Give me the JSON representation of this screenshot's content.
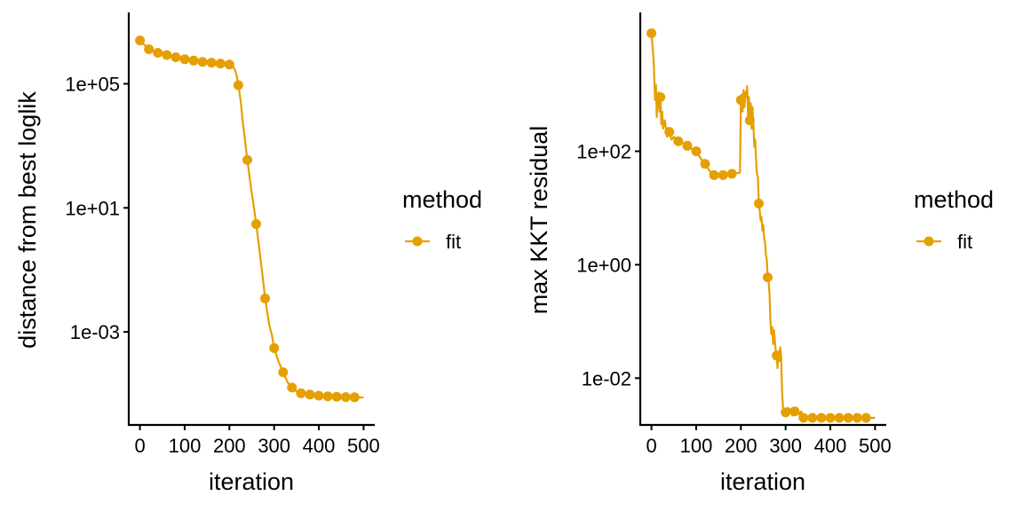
{
  "chart_data": [
    {
      "type": "line",
      "xlabel": "iteration",
      "ylabel": "distance from best loglik",
      "y_scale": "log10",
      "xlim": [
        -25,
        525
      ],
      "ylim": [
        1e-06,
        20000000
      ],
      "x_ticks": [
        0,
        100,
        200,
        300,
        400,
        500
      ],
      "x_tick_labels": [
        "0",
        "100",
        "200",
        "300",
        "400",
        "500"
      ],
      "y_ticks": [
        0.001,
        10,
        100000
      ],
      "y_tick_labels": [
        "1e-03",
        "1e+01",
        "1e+05"
      ],
      "legend": {
        "title": "method",
        "placement": "right"
      },
      "series": [
        {
          "name": "fit",
          "color": "#E69F00",
          "line": [
            [
              0,
              2500000
            ],
            [
              10,
              1800000
            ],
            [
              20,
              1300000
            ],
            [
              30,
              1150000
            ],
            [
              40,
              1000000
            ],
            [
              60,
              850000
            ],
            [
              80,
              720000
            ],
            [
              100,
              620000
            ],
            [
              120,
              560000
            ],
            [
              140,
              510000
            ],
            [
              160,
              480000
            ],
            [
              180,
              450000
            ],
            [
              190,
              440000
            ],
            [
              200,
              420000
            ],
            [
              205,
              400000
            ],
            [
              210,
              330000
            ],
            [
              215,
              220000
            ],
            [
              220,
              90000
            ],
            [
              225,
              30000
            ],
            [
              230,
              6000
            ],
            [
              235,
              1500
            ],
            [
              240,
              350
            ],
            [
              245,
              100
            ],
            [
              250,
              30
            ],
            [
              255,
              10
            ],
            [
              260,
              3
            ],
            [
              265,
              0.8
            ],
            [
              270,
              0.2
            ],
            [
              275,
              0.05
            ],
            [
              280,
              0.012
            ],
            [
              285,
              0.004
            ],
            [
              290,
              0.0015
            ],
            [
              295,
              0.0008
            ],
            [
              300,
              0.0003
            ],
            [
              310,
              0.00011
            ],
            [
              320,
              5e-05
            ],
            [
              330,
              2.4e-05
            ],
            [
              340,
              1.6e-05
            ],
            [
              350,
              1.2e-05
            ],
            [
              360,
              1.05e-05
            ],
            [
              380,
              9.5e-06
            ],
            [
              400,
              8.8e-06
            ],
            [
              420,
              8.4e-06
            ],
            [
              440,
              8.1e-06
            ],
            [
              460,
              7.9e-06
            ],
            [
              480,
              7.8e-06
            ],
            [
              500,
              7.7e-06
            ]
          ],
          "points": [
            [
              0,
              2500000
            ],
            [
              20,
              1300000
            ],
            [
              40,
              1000000
            ],
            [
              60,
              850000
            ],
            [
              80,
              720000
            ],
            [
              100,
              620000
            ],
            [
              120,
              560000
            ],
            [
              140,
              510000
            ],
            [
              160,
              480000
            ],
            [
              180,
              450000
            ],
            [
              200,
              420000
            ],
            [
              220,
              90000
            ],
            [
              240,
              350
            ],
            [
              260,
              3
            ],
            [
              280,
              0.012
            ],
            [
              300,
              0.0003
            ],
            [
              320,
              5e-05
            ],
            [
              340,
              1.6e-05
            ],
            [
              360,
              1.05e-05
            ],
            [
              380,
              9.5e-06
            ],
            [
              400,
              8.8e-06
            ],
            [
              420,
              8.4e-06
            ],
            [
              440,
              8.1e-06
            ],
            [
              460,
              7.9e-06
            ],
            [
              480,
              7.8e-06
            ]
          ]
        }
      ]
    },
    {
      "type": "line",
      "xlabel": "iteration",
      "ylabel": "max KKT residual",
      "y_scale": "log10",
      "xlim": [
        -25,
        525
      ],
      "ylim": [
        0.0015,
        28000
      ],
      "x_ticks": [
        0,
        100,
        200,
        300,
        400,
        500
      ],
      "x_tick_labels": [
        "0",
        "100",
        "200",
        "300",
        "400",
        "500"
      ],
      "y_ticks": [
        0.01,
        1,
        100
      ],
      "y_tick_labels": [
        "1e-02",
        "1e+00",
        "1e+02"
      ],
      "legend": {
        "title": "method",
        "placement": "right"
      },
      "series": [
        {
          "name": "fit",
          "color": "#E69F00",
          "line": [
            [
              0,
              12000
            ],
            [
              5,
              4000
            ],
            [
              8,
              800
            ],
            [
              10,
              1500
            ],
            [
              12,
              400
            ],
            [
              14,
              900
            ],
            [
              16,
              1100
            ],
            [
              18,
              500
            ],
            [
              20,
              900
            ],
            [
              22,
              300
            ],
            [
              24,
              500
            ],
            [
              26,
              250
            ],
            [
              30,
              350
            ],
            [
              35,
              180
            ],
            [
              40,
              220
            ],
            [
              45,
              160
            ],
            [
              50,
              180
            ],
            [
              60,
              150
            ],
            [
              70,
              140
            ],
            [
              80,
              125
            ],
            [
              90,
              110
            ],
            [
              100,
              100
            ],
            [
              110,
              75
            ],
            [
              120,
              60
            ],
            [
              130,
              45
            ],
            [
              140,
              38
            ],
            [
              150,
              37
            ],
            [
              160,
              38
            ],
            [
              170,
              39
            ],
            [
              180,
              40
            ],
            [
              190,
              41
            ],
            [
              198,
              42
            ],
            [
              200,
              800
            ],
            [
              202,
              1000
            ],
            [
              204,
              500
            ],
            [
              206,
              1200
            ],
            [
              208,
              600
            ],
            [
              210,
              1100
            ],
            [
              212,
              900
            ],
            [
              214,
              1400
            ],
            [
              216,
              400
            ],
            [
              218,
              900
            ],
            [
              220,
              350
            ],
            [
              222,
              700
            ],
            [
              224,
              250
            ],
            [
              226,
              600
            ],
            [
              228,
              300
            ],
            [
              230,
              120
            ],
            [
              232,
              160
            ],
            [
              234,
              70
            ],
            [
              236,
              40
            ],
            [
              238,
              35
            ],
            [
              240,
              12
            ],
            [
              242,
              9
            ],
            [
              244,
              6
            ],
            [
              246,
              7
            ],
            [
              248,
              4
            ],
            [
              250,
              5
            ],
            [
              252,
              3
            ],
            [
              254,
              2.5
            ],
            [
              256,
              1.5
            ],
            [
              258,
              1.2
            ],
            [
              260,
              0.6
            ],
            [
              262,
              0.5
            ],
            [
              264,
              0.3
            ],
            [
              266,
              0.1
            ],
            [
              268,
              0.06
            ],
            [
              270,
              0.08
            ],
            [
              272,
              0.04
            ],
            [
              274,
              0.07
            ],
            [
              276,
              0.045
            ],
            [
              278,
              0.03
            ],
            [
              280,
              0.025
            ],
            [
              282,
              0.015
            ],
            [
              284,
              0.03
            ],
            [
              286,
              0.02
            ],
            [
              288,
              0.035
            ],
            [
              290,
              0.025
            ],
            [
              292,
              0.006
            ],
            [
              294,
              0.003
            ],
            [
              296,
              0.0025
            ],
            [
              300,
              0.0025
            ],
            [
              305,
              0.003
            ],
            [
              310,
              0.0028
            ],
            [
              315,
              0.0022
            ],
            [
              320,
              0.0026
            ],
            [
              325,
              0.003
            ],
            [
              330,
              0.0023
            ],
            [
              335,
              0.0026
            ],
            [
              340,
              0.002
            ],
            [
              345,
              0.0022
            ],
            [
              350,
              0.0021
            ],
            [
              360,
              0.002
            ],
            [
              380,
              0.002
            ],
            [
              400,
              0.002
            ],
            [
              420,
              0.002
            ],
            [
              440,
              0.002
            ],
            [
              460,
              0.002
            ],
            [
              480,
              0.002
            ],
            [
              500,
              0.002
            ]
          ],
          "points": [
            [
              0,
              12000
            ],
            [
              20,
              900
            ],
            [
              40,
              220
            ],
            [
              60,
              150
            ],
            [
              80,
              125
            ],
            [
              100,
              100
            ],
            [
              120,
              60
            ],
            [
              140,
              38
            ],
            [
              160,
              38
            ],
            [
              180,
              40
            ],
            [
              200,
              800
            ],
            [
              220,
              350
            ],
            [
              240,
              12
            ],
            [
              260,
              0.6
            ],
            [
              280,
              0.025
            ],
            [
              300,
              0.0025
            ],
            [
              320,
              0.0026
            ],
            [
              340,
              0.002
            ],
            [
              360,
              0.002
            ],
            [
              380,
              0.002
            ],
            [
              400,
              0.002
            ],
            [
              420,
              0.002
            ],
            [
              440,
              0.002
            ],
            [
              460,
              0.002
            ],
            [
              480,
              0.002
            ]
          ]
        }
      ]
    }
  ]
}
